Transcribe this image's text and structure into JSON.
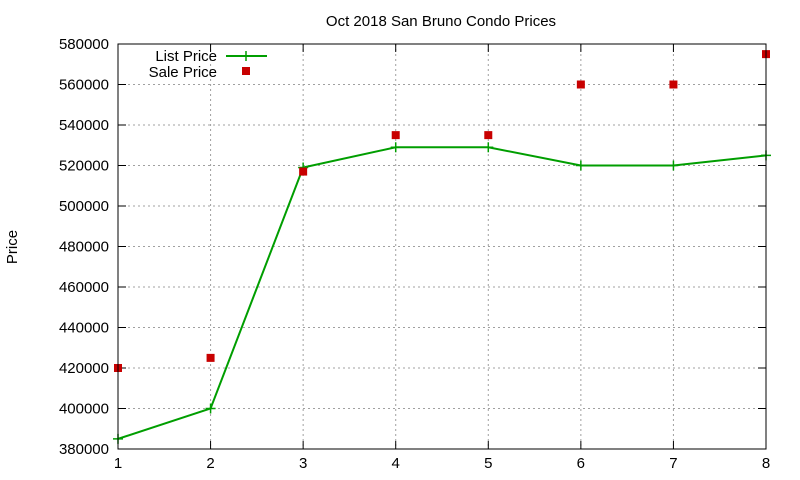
{
  "chart_data": {
    "type": "line",
    "title": "Oct 2018 San Bruno Condo Prices",
    "xlabel": "",
    "ylabel": "Price",
    "x": [
      1,
      2,
      3,
      4,
      5,
      6,
      7,
      8
    ],
    "xlim": [
      1,
      8
    ],
    "ylim": [
      380000,
      580000
    ],
    "xticks": [
      "1",
      "2",
      "3",
      "4",
      "5",
      "6",
      "7",
      "8"
    ],
    "yticks": [
      "380000",
      "400000",
      "420000",
      "440000",
      "460000",
      "480000",
      "500000",
      "520000",
      "540000",
      "560000",
      "580000"
    ],
    "grid": true,
    "legend_position": "top-left",
    "series": [
      {
        "name": "List Price",
        "style": "line with plus markers",
        "color": "#009e00",
        "values": [
          385000,
          400000,
          519000,
          529000,
          529000,
          520000,
          520000,
          525000
        ]
      },
      {
        "name": "Sale Price",
        "style": "square points",
        "color": "#c80000",
        "values": [
          420000,
          425000,
          517000,
          535000,
          535000,
          560000,
          560000,
          575000
        ]
      }
    ]
  }
}
